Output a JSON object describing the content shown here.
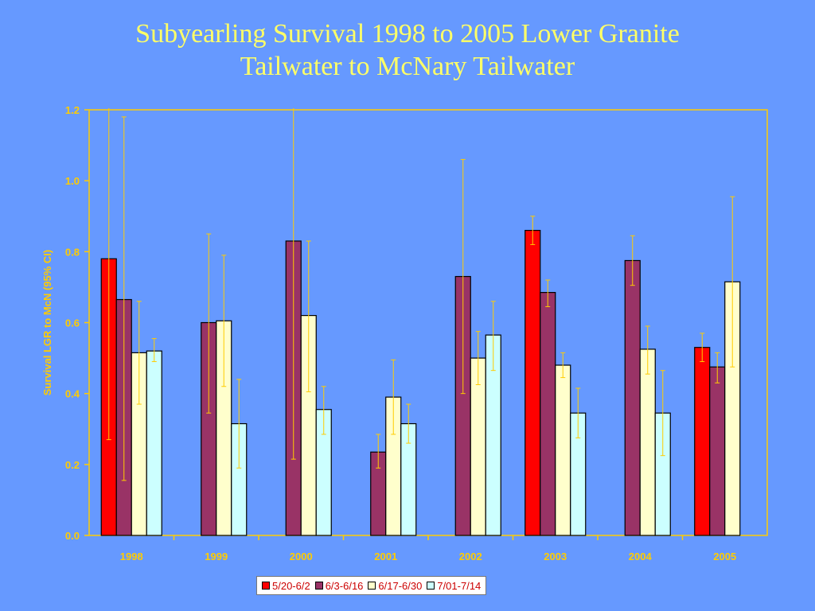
{
  "title_line1": "Subyearling Survival 1998 to 2005 Lower Granite",
  "title_line2": "Tailwater to McNary Tailwater",
  "chart_data": {
    "type": "bar",
    "title": "Subyearling Survival 1998 to 2005 Lower Granite Tailwater to McNary Tailwater",
    "xlabel": "",
    "ylabel": "Survival LGR to McN (95% CI)",
    "ylim": [
      0,
      1.2
    ],
    "yticks": [
      "0.0",
      "0.2",
      "0.4",
      "0.6",
      "0.8",
      "1.0",
      "1.2"
    ],
    "categories": [
      "1998",
      "1999",
      "2000",
      "2001",
      "2002",
      "2003",
      "2004",
      "2005"
    ],
    "legend_position": "bottom",
    "grid": false,
    "error_bar_color": "#ffcc00",
    "series": [
      {
        "name": "5/20-6/2",
        "color": "#ff0000",
        "values": [
          0.78,
          null,
          null,
          null,
          null,
          0.86,
          null,
          0.53
        ],
        "ci_low": [
          0.27,
          null,
          null,
          null,
          null,
          0.82,
          null,
          0.49
        ],
        "ci_high": [
          1.21,
          null,
          null,
          null,
          null,
          0.9,
          null,
          0.57
        ]
      },
      {
        "name": "6/3-6/16",
        "color": "#993366",
        "values": [
          0.665,
          0.6,
          0.83,
          0.235,
          0.73,
          0.685,
          0.775,
          0.475
        ],
        "ci_low": [
          0.155,
          0.345,
          0.215,
          0.19,
          0.4,
          0.645,
          0.705,
          0.43
        ],
        "ci_high": [
          1.18,
          0.85,
          1.21,
          0.285,
          1.06,
          0.72,
          0.845,
          0.515
        ]
      },
      {
        "name": "6/17-6/30",
        "color": "#ffffcc",
        "values": [
          0.515,
          0.605,
          0.62,
          0.39,
          0.5,
          0.48,
          0.525,
          0.715
        ],
        "ci_low": [
          0.37,
          0.42,
          0.405,
          0.285,
          0.425,
          0.445,
          0.455,
          0.475
        ],
        "ci_high": [
          0.66,
          0.79,
          0.83,
          0.495,
          0.575,
          0.515,
          0.59,
          0.955
        ]
      },
      {
        "name": "7/01-7/14",
        "color": "#ccffff",
        "values": [
          0.52,
          0.315,
          0.355,
          0.315,
          0.565,
          0.345,
          0.345,
          null
        ],
        "ci_low": [
          0.49,
          0.19,
          0.285,
          0.26,
          0.465,
          0.275,
          0.225,
          null
        ],
        "ci_high": [
          0.555,
          0.44,
          0.42,
          0.37,
          0.66,
          0.415,
          0.465,
          null
        ]
      }
    ]
  }
}
